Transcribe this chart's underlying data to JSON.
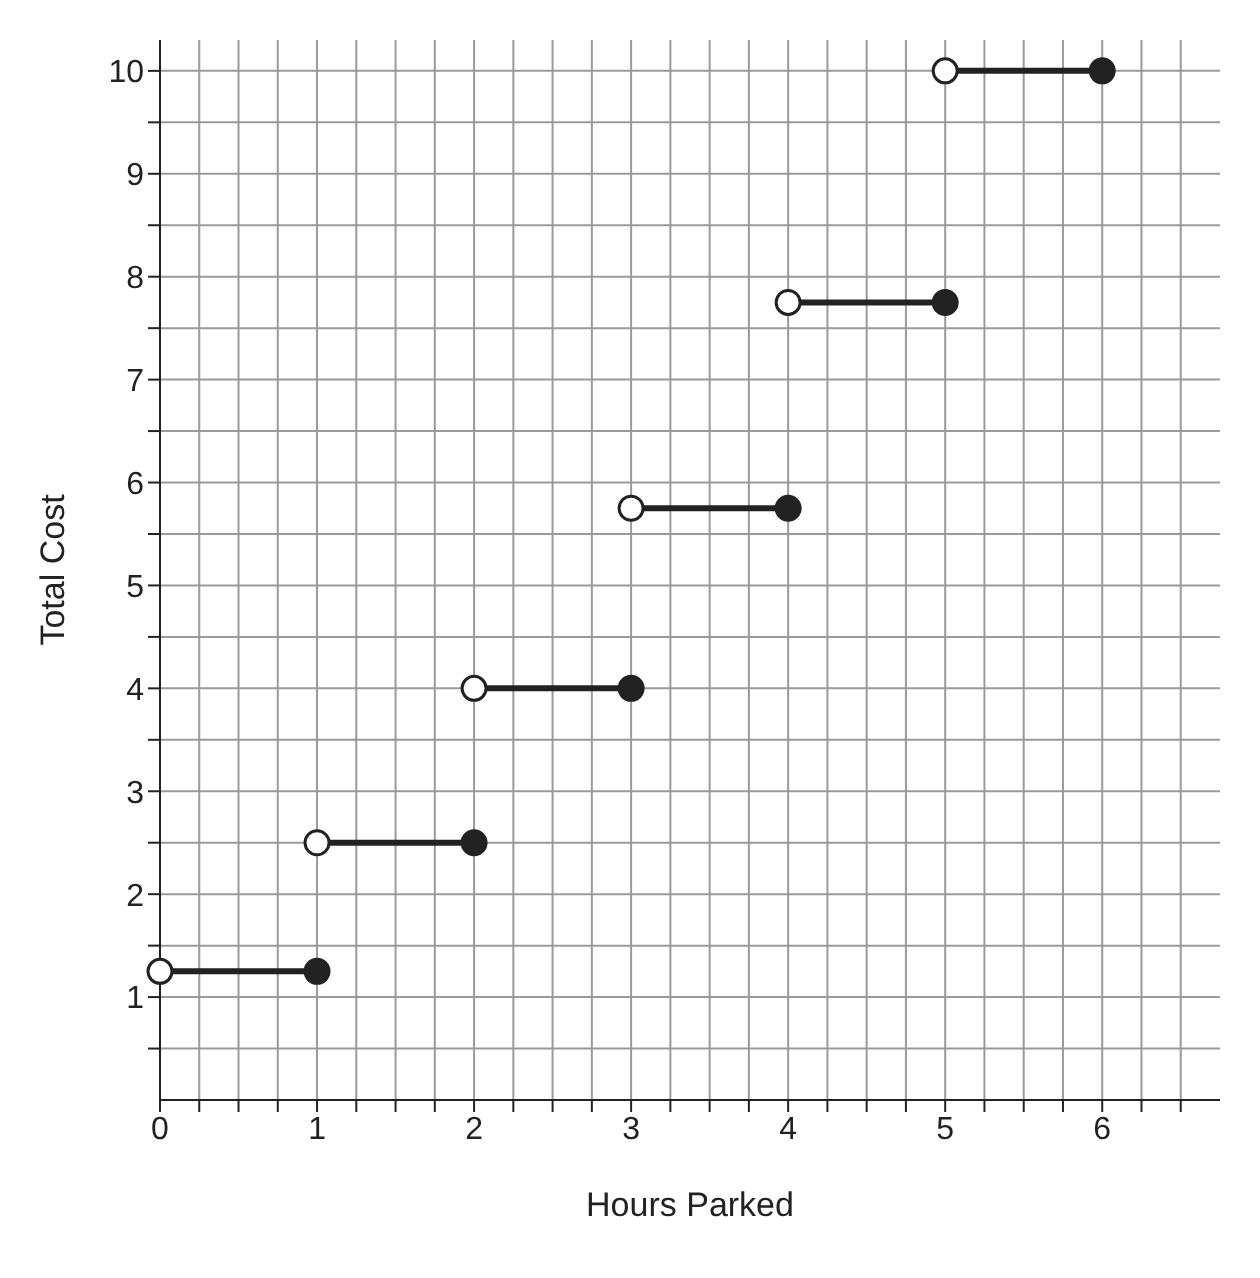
{
  "chart_data": {
    "type": "line",
    "xlabel": "Hours Parked",
    "ylabel": "Total Cost",
    "xlim": [
      0,
      6.75
    ],
    "ylim": [
      0,
      10.3
    ],
    "xticks": [
      0,
      {
        "value": 0.25,
        "label": null
      },
      {
        "value": 0.5,
        "label": null
      },
      {
        "value": 0.75,
        "label": null
      },
      1,
      {
        "value": 1.25,
        "label": null
      },
      {
        "value": 1.5,
        "label": null
      },
      {
        "value": 1.75,
        "label": null
      },
      2,
      {
        "value": 2.25,
        "label": null
      },
      {
        "value": 2.5,
        "label": null
      },
      {
        "value": 2.75,
        "label": null
      },
      3,
      {
        "value": 3.25,
        "label": null
      },
      {
        "value": 3.5,
        "label": null
      },
      {
        "value": 3.75,
        "label": null
      },
      4,
      {
        "value": 4.25,
        "label": null
      },
      {
        "value": 4.5,
        "label": null
      },
      {
        "value": 4.75,
        "label": null
      },
      5,
      {
        "value": 5.25,
        "label": null
      },
      {
        "value": 5.5,
        "label": null
      },
      {
        "value": 5.75,
        "label": null
      },
      6,
      {
        "value": 6.25,
        "label": null
      },
      {
        "value": 6.5,
        "label": null
      }
    ],
    "yticks": [
      {
        "value": 0.5,
        "label": null
      },
      1,
      {
        "value": 1.5,
        "label": null
      },
      2,
      {
        "value": 2.5,
        "label": null
      },
      3,
      {
        "value": 3.5,
        "label": null
      },
      4,
      {
        "value": 4.5,
        "label": null
      },
      5,
      {
        "value": 5.5,
        "label": null
      },
      6,
      {
        "value": 6.5,
        "label": null
      },
      7,
      {
        "value": 7.5,
        "label": null
      },
      8,
      {
        "value": 8.5,
        "label": null
      },
      9,
      {
        "value": 9.5,
        "label": null
      },
      10
    ],
    "grid": true,
    "marker": "circle",
    "line_style": "solid",
    "series": [
      {
        "color": "#222222",
        "x": [
          0,
          1
        ],
        "values": [
          1.25,
          1.25
        ]
      },
      {
        "color": "#222222",
        "x": [
          1,
          2
        ],
        "values": [
          2.5,
          2.5
        ]
      },
      {
        "color": "#222222",
        "x": [
          2,
          3
        ],
        "values": [
          4,
          4
        ]
      },
      {
        "color": "#222222",
        "x": [
          3,
          4
        ],
        "values": [
          5.75,
          5.75
        ]
      },
      {
        "color": "#222222",
        "x": [
          4,
          5
        ],
        "values": [
          7.75,
          7.75
        ]
      },
      {
        "color": "#222222",
        "x": [
          5,
          6
        ],
        "values": [
          10,
          10
        ]
      }
    ]
  }
}
